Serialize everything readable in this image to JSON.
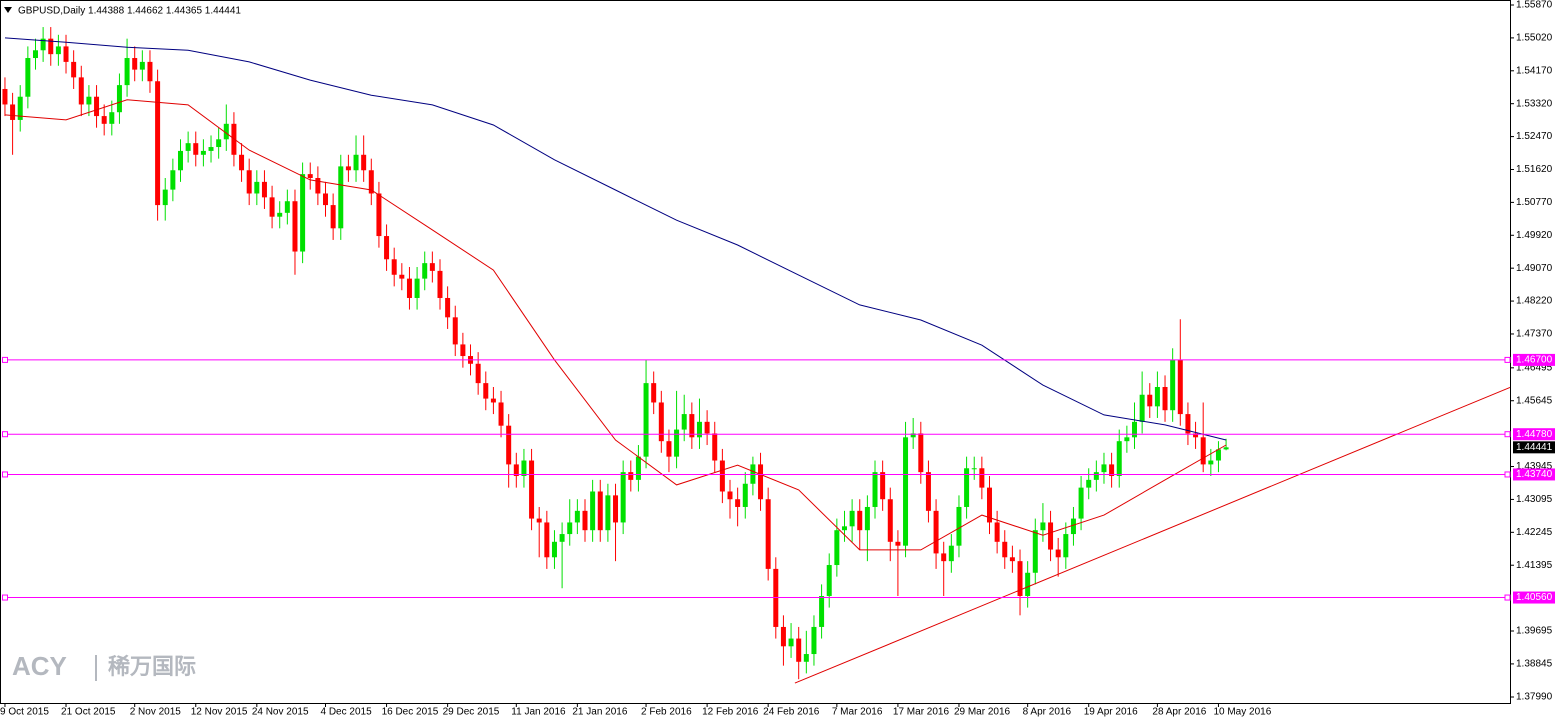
{
  "chart_data": {
    "type": "candlestick",
    "title": "GBPUSD,Daily  1.44388 1.44662 1.44365 1.44441",
    "watermark": {
      "brand": "ACY",
      "name": "稀万国际"
    },
    "categories": [
      "9 Oct 2015",
      null,
      null,
      null,
      null,
      null,
      null,
      null,
      "21 Oct 2015",
      null,
      null,
      null,
      null,
      null,
      null,
      null,
      null,
      "2 Nov 2015",
      null,
      null,
      null,
      null,
      null,
      null,
      null,
      "12 Nov 2015",
      null,
      null,
      null,
      null,
      null,
      null,
      null,
      "24 Nov 2015",
      null,
      null,
      null,
      null,
      null,
      null,
      null,
      null,
      "4 Dec 2015",
      null,
      null,
      null,
      null,
      null,
      null,
      null,
      "16 Dec 2015",
      null,
      null,
      null,
      null,
      null,
      null,
      null,
      "29 Dec 2015",
      null,
      null,
      null,
      null,
      null,
      null,
      null,
      null,
      "11 Jan 2016",
      null,
      null,
      null,
      null,
      null,
      null,
      null,
      "21 Jan 2016",
      null,
      null,
      null,
      null,
      null,
      null,
      null,
      null,
      "2 Feb 2016",
      null,
      null,
      null,
      null,
      null,
      null,
      null,
      "12 Feb 2016",
      null,
      null,
      null,
      null,
      null,
      null,
      null,
      "24 Feb 2016",
      null,
      null,
      null,
      null,
      null,
      null,
      null,
      null,
      "7 Mar 2016",
      null,
      null,
      null,
      null,
      null,
      null,
      null,
      "17 Mar 2016",
      null,
      null,
      null,
      null,
      null,
      null,
      null,
      "29 Mar 2016",
      null,
      null,
      null,
      null,
      null,
      null,
      null,
      null,
      "8 Apr 2016",
      null,
      null,
      null,
      null,
      null,
      null,
      null,
      "19 Apr 2016",
      null,
      null,
      null,
      null,
      null,
      null,
      null,
      null,
      "28 Apr 2016",
      null,
      null,
      null,
      null,
      null,
      null,
      null,
      "10 May 2016",
      null
    ],
    "open": [
      1.537,
      1.533,
      1.529,
      1.535,
      1.545,
      1.547,
      1.55,
      1.546,
      1.548,
      1.544,
      1.54,
      1.533,
      1.535,
      1.53,
      1.528,
      1.531,
      1.538,
      1.545,
      1.542,
      1.544,
      1.539,
      1.507,
      1.511,
      1.516,
      1.521,
      1.523,
      1.52,
      1.521,
      1.522,
      1.524,
      1.528,
      1.52,
      1.516,
      1.51,
      1.513,
      1.509,
      1.504,
      1.505,
      1.508,
      1.495,
      1.515,
      1.514,
      1.51,
      1.507,
      1.501,
      1.517,
      1.516,
      1.52,
      1.516,
      1.51,
      1.499,
      1.493,
      1.489,
      1.488,
      1.483,
      1.488,
      1.492,
      1.49,
      1.483,
      1.478,
      1.471,
      1.468,
      1.466,
      1.461,
      1.457,
      1.456,
      1.45,
      1.44,
      1.437,
      1.441,
      1.426,
      1.425,
      1.416,
      1.42,
      1.422,
      1.425,
      1.428,
      1.423,
      1.433,
      1.423,
      1.432,
      1.425,
      1.438,
      1.436,
      1.442,
      1.461,
      1.456,
      1.446,
      1.442,
      1.449,
      1.453,
      1.447,
      1.451,
      1.448,
      1.441,
      1.433,
      1.431,
      1.429,
      1.435,
      1.44,
      1.431,
      1.413,
      1.398,
      1.393,
      1.395,
      1.389,
      1.391,
      1.398,
      1.406,
      1.414,
      1.423,
      1.424,
      1.428,
      1.423,
      1.429,
      1.438,
      1.431,
      1.42,
      1.419,
      1.447,
      1.448,
      1.438,
      1.428,
      1.417,
      1.415,
      1.419,
      1.429,
      1.439,
      1.439,
      1.434,
      1.425,
      1.42,
      1.416,
      1.415,
      1.406,
      1.412,
      1.423,
      1.425,
      1.418,
      1.416,
      1.422,
      1.426,
      1.434,
      1.436,
      1.438,
      1.44,
      1.437,
      1.446,
      1.447,
      1.451,
      1.458,
      1.455,
      1.46,
      1.454,
      1.467,
      1.453,
      1.448,
      1.447,
      1.44,
      1.441,
      1.44388
    ],
    "high": [
      1.54,
      1.536,
      1.538,
      1.548,
      1.55,
      1.553,
      1.553,
      1.551,
      1.551,
      1.547,
      1.543,
      1.538,
      1.538,
      1.533,
      1.534,
      1.541,
      1.55,
      1.548,
      1.547,
      1.547,
      1.542,
      1.514,
      1.519,
      1.524,
      1.526,
      1.526,
      1.524,
      1.525,
      1.527,
      1.533,
      1.531,
      1.523,
      1.519,
      1.516,
      1.516,
      1.512,
      1.508,
      1.511,
      1.511,
      1.518,
      1.518,
      1.517,
      1.513,
      1.51,
      1.52,
      1.52,
      1.525,
      1.525,
      1.519,
      1.513,
      1.502,
      1.496,
      1.492,
      1.491,
      1.491,
      1.495,
      1.495,
      1.493,
      1.486,
      1.481,
      1.474,
      1.471,
      1.469,
      1.464,
      1.46,
      1.459,
      1.453,
      1.443,
      1.444,
      1.444,
      1.429,
      1.428,
      1.423,
      1.425,
      1.431,
      1.431,
      1.431,
      1.436,
      1.436,
      1.435,
      1.435,
      1.441,
      1.441,
      1.445,
      1.467,
      1.464,
      1.459,
      1.449,
      1.459,
      1.458,
      1.456,
      1.457,
      1.454,
      1.451,
      1.444,
      1.436,
      1.434,
      1.438,
      1.442,
      1.443,
      1.434,
      1.416,
      1.401,
      1.399,
      1.398,
      1.397,
      1.401,
      1.409,
      1.417,
      1.426,
      1.428,
      1.431,
      1.431,
      1.432,
      1.441,
      1.441,
      1.434,
      1.423,
      1.451,
      1.452,
      1.451,
      1.441,
      1.431,
      1.42,
      1.422,
      1.432,
      1.442,
      1.442,
      1.442,
      1.437,
      1.428,
      1.423,
      1.419,
      1.418,
      1.415,
      1.426,
      1.43,
      1.428,
      1.421,
      1.425,
      1.429,
      1.437,
      1.439,
      1.441,
      1.443,
      1.443,
      1.449,
      1.45,
      1.456,
      1.464,
      1.461,
      1.464,
      1.463,
      1.47,
      1.4775,
      1.456,
      1.451,
      1.456,
      1.444,
      1.446,
      1.44662
    ],
    "low": [
      1.53,
      1.52,
      1.526,
      1.532,
      1.542,
      1.544,
      1.543,
      1.543,
      1.541,
      1.537,
      1.53,
      1.53,
      1.527,
      1.525,
      1.525,
      1.528,
      1.535,
      1.539,
      1.539,
      1.536,
      1.503,
      1.503,
      1.508,
      1.513,
      1.518,
      1.517,
      1.517,
      1.518,
      1.519,
      1.521,
      1.517,
      1.513,
      1.507,
      1.507,
      1.506,
      1.501,
      1.501,
      1.502,
      1.489,
      1.492,
      1.511,
      1.507,
      1.504,
      1.498,
      1.498,
      1.513,
      1.513,
      1.513,
      1.507,
      1.496,
      1.49,
      1.486,
      1.485,
      1.48,
      1.48,
      1.485,
      1.487,
      1.48,
      1.475,
      1.468,
      1.465,
      1.463,
      1.458,
      1.454,
      1.453,
      1.447,
      1.434,
      1.434,
      1.434,
      1.423,
      1.416,
      1.413,
      1.413,
      1.408,
      1.419,
      1.422,
      1.42,
      1.42,
      1.42,
      1.42,
      1.415,
      1.422,
      1.433,
      1.433,
      1.439,
      1.453,
      1.443,
      1.438,
      1.439,
      1.446,
      1.444,
      1.444,
      1.445,
      1.438,
      1.43,
      1.426,
      1.424,
      1.426,
      1.432,
      1.428,
      1.41,
      1.395,
      1.388,
      1.39,
      1.3845,
      1.386,
      1.388,
      1.395,
      1.403,
      1.411,
      1.42,
      1.42,
      1.418,
      1.415,
      1.426,
      1.428,
      1.415,
      1.406,
      1.416,
      1.444,
      1.435,
      1.425,
      1.413,
      1.406,
      1.412,
      1.416,
      1.426,
      1.436,
      1.431,
      1.422,
      1.417,
      1.413,
      1.412,
      1.401,
      1.403,
      1.409,
      1.42,
      1.415,
      1.411,
      1.413,
      1.419,
      1.423,
      1.431,
      1.433,
      1.435,
      1.434,
      1.434,
      1.443,
      1.444,
      1.448,
      1.452,
      1.452,
      1.451,
      1.451,
      1.45,
      1.445,
      1.444,
      1.438,
      1.437,
      1.438,
      1.44365
    ],
    "close": [
      1.533,
      1.529,
      1.535,
      1.545,
      1.547,
      1.55,
      1.546,
      1.548,
      1.544,
      1.54,
      1.533,
      1.535,
      1.53,
      1.528,
      1.531,
      1.538,
      1.545,
      1.542,
      1.544,
      1.539,
      1.507,
      1.511,
      1.516,
      1.521,
      1.523,
      1.52,
      1.521,
      1.522,
      1.524,
      1.528,
      1.52,
      1.516,
      1.51,
      1.513,
      1.509,
      1.504,
      1.505,
      1.508,
      1.495,
      1.515,
      1.514,
      1.51,
      1.507,
      1.501,
      1.517,
      1.516,
      1.52,
      1.516,
      1.51,
      1.499,
      1.493,
      1.489,
      1.488,
      1.483,
      1.488,
      1.492,
      1.49,
      1.483,
      1.478,
      1.471,
      1.468,
      1.466,
      1.461,
      1.457,
      1.456,
      1.45,
      1.44,
      1.437,
      1.441,
      1.426,
      1.425,
      1.416,
      1.42,
      1.422,
      1.425,
      1.428,
      1.423,
      1.433,
      1.423,
      1.432,
      1.425,
      1.438,
      1.436,
      1.442,
      1.461,
      1.456,
      1.446,
      1.442,
      1.449,
      1.453,
      1.447,
      1.451,
      1.448,
      1.441,
      1.433,
      1.431,
      1.429,
      1.435,
      1.44,
      1.431,
      1.413,
      1.398,
      1.393,
      1.395,
      1.389,
      1.391,
      1.398,
      1.406,
      1.414,
      1.423,
      1.424,
      1.428,
      1.423,
      1.429,
      1.438,
      1.431,
      1.42,
      1.419,
      1.447,
      1.448,
      1.438,
      1.428,
      1.417,
      1.415,
      1.419,
      1.429,
      1.439,
      1.439,
      1.434,
      1.425,
      1.42,
      1.416,
      1.415,
      1.406,
      1.412,
      1.423,
      1.425,
      1.418,
      1.416,
      1.422,
      1.426,
      1.434,
      1.436,
      1.438,
      1.44,
      1.437,
      1.446,
      1.447,
      1.451,
      1.458,
      1.455,
      1.46,
      1.454,
      1.467,
      1.453,
      1.448,
      1.447,
      1.44,
      1.441,
      1.44388,
      1.44441
    ],
    "up_color": "#00e000",
    "down_color": "#ff0000",
    "xlim": [
      -0.65,
      197.2
    ],
    "ylim": [
      1.3799,
      1.5587
    ],
    "yticks": [
      {
        "value": 1.5587,
        "label": "1.55870"
      },
      {
        "value": 1.5502,
        "label": "1.55020"
      },
      {
        "value": 1.5417,
        "label": "1.54170"
      },
      {
        "value": 1.5332,
        "label": "1.53320"
      },
      {
        "value": 1.5247,
        "label": "1.52470"
      },
      {
        "value": 1.5162,
        "label": "1.51620"
      },
      {
        "value": 1.5077,
        "label": "1.50770"
      },
      {
        "value": 1.4992,
        "label": "1.49920"
      },
      {
        "value": 1.4907,
        "label": "1.49070"
      },
      {
        "value": 1.4822,
        "label": "1.48220"
      },
      {
        "value": 1.4737,
        "label": "1.47370"
      },
      1.46495,
      1.45645,
      1.43945,
      1.43095,
      1.42245,
      1.41395,
      1.39695,
      1.38845,
      {
        "value": 1.3799,
        "label": "1.37990"
      }
    ],
    "moving_averages": [
      {
        "color": "#e00000",
        "x": [
          0,
          8,
          16,
          24,
          32,
          40,
          48,
          56,
          64,
          72,
          80,
          88,
          96,
          104,
          112,
          120,
          128,
          136,
          144,
          152,
          160
        ],
        "values": [
          1.5303,
          1.529,
          1.5342,
          1.5329,
          1.5212,
          1.5135,
          1.5109,
          1.5006,
          1.4902,
          1.467,
          1.4463,
          1.4347,
          1.4398,
          1.4334,
          1.4179,
          1.4179,
          1.4269,
          1.4217,
          1.4269,
          1.436,
          1.445
        ]
      },
      {
        "color": "#000080",
        "x": [
          0,
          8,
          16,
          24,
          32,
          40,
          48,
          56,
          64,
          72,
          80,
          88,
          96,
          104,
          112,
          120,
          128,
          136,
          144,
          152,
          160
        ],
        "values": [
          1.5502,
          1.5491,
          1.5478,
          1.547,
          1.544,
          1.5393,
          1.5354,
          1.5329,
          1.5277,
          1.5187,
          1.5109,
          1.5031,
          1.4967,
          1.4889,
          1.4812,
          1.4773,
          1.4708,
          1.4605,
          1.4528,
          1.4502,
          1.4463
        ]
      }
    ],
    "trend_line": {
      "color": "#e00000",
      "x": [
        103.5,
        197.2
      ],
      "values": [
        1.3835,
        1.4599
      ]
    },
    "level_color": "#ff00ff",
    "levels": [
      {
        "value": 1.467,
        "label": "1.46700"
      },
      {
        "value": 1.4478,
        "label": "1.44780"
      },
      {
        "value": 1.4374,
        "label": "1.43740"
      },
      {
        "value": 1.4056,
        "label": "1.40560"
      }
    ],
    "current_price": 1.44441
  }
}
